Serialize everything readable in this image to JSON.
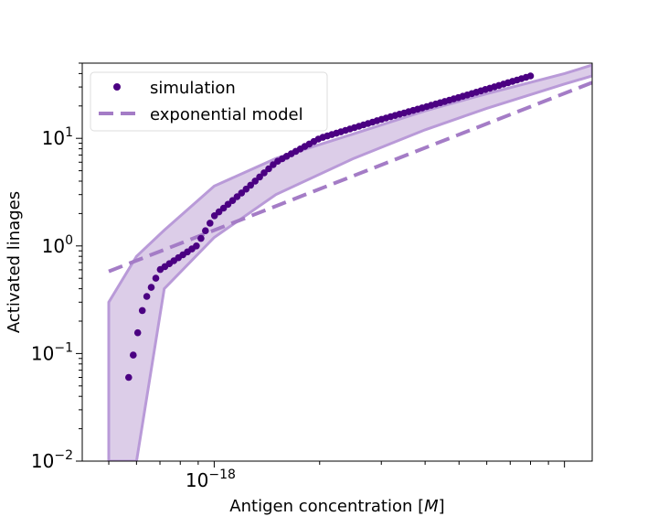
{
  "chart_data": {
    "type": "scatter",
    "xscale": "log",
    "yscale": "log",
    "xlabel": "Antigen concentration [M]",
    "ylabel": "Activated linages",
    "xlim": [
      4.2e-19,
      1.2e-17
    ],
    "ylim": [
      0.01,
      50
    ],
    "xtick_labels": [
      {
        "value": 1e-18,
        "base": "10",
        "exp": "−18"
      }
    ],
    "ytick_labels": [
      {
        "value": 0.01,
        "base": "10",
        "exp": "−2"
      },
      {
        "value": 0.1,
        "base": "10",
        "exp": "−1"
      },
      {
        "value": 1,
        "base": "10",
        "exp": "0"
      },
      {
        "value": 10,
        "base": "10",
        "exp": "1"
      }
    ],
    "legend": {
      "position": "top-left"
    },
    "colors": {
      "simulation": "#4b0082",
      "model": "#a47cc6",
      "band_fill": "#d6c4e4",
      "band_edge": "#b99ad8"
    },
    "series": [
      {
        "name": "simulation",
        "kind": "points",
        "x": [
          5.7e-19,
          6.3e-19,
          7e-19,
          8.9e-19,
          1e-18,
          1.25e-18,
          1.5e-18,
          2e-18,
          3e-18,
          5e-18,
          8e-18
        ],
        "y": [
          0.06,
          0.3,
          0.6,
          1.0,
          1.9,
          3.5,
          6.0,
          10.0,
          15.0,
          24.0,
          38.0
        ]
      },
      {
        "name": "exponential model",
        "kind": "dashed-line",
        "x": [
          5e-19,
          1.2e-17
        ],
        "y": [
          0.58,
          33.0
        ]
      },
      {
        "name": "",
        "kind": "band",
        "x": [
          5e-19,
          6e-19,
          7.2e-19,
          1e-18,
          1.5e-18,
          2.5e-18,
          4e-18,
          6e-18,
          1e-17,
          1.2e-17
        ],
        "lower": [
          0.01,
          0.01,
          0.4,
          1.2,
          3.0,
          6.5,
          12.0,
          19.0,
          32.0,
          38.0
        ],
        "upper": [
          0.3,
          0.8,
          1.4,
          3.6,
          6.5,
          11.0,
          18.0,
          26.0,
          40.0,
          48.0
        ]
      }
    ]
  }
}
